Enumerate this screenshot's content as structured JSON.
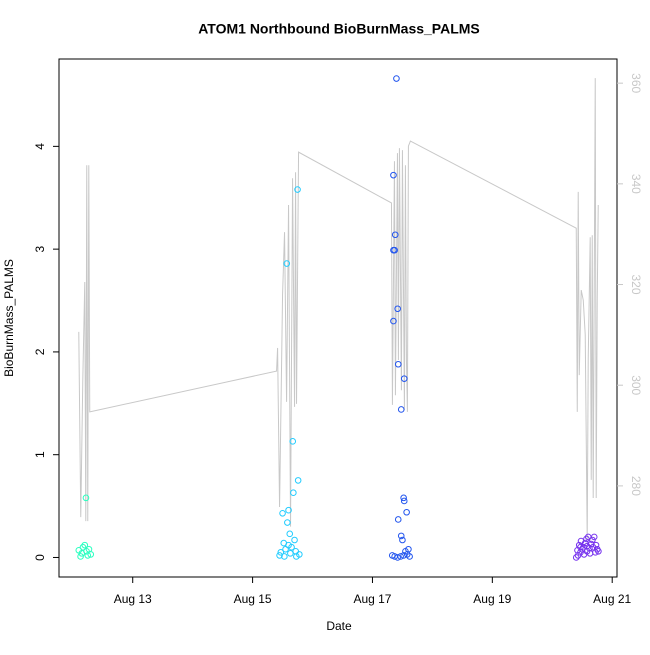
{
  "chart_data": {
    "type": "scatter",
    "title": "ATOM1 Northbound BioBurnMass_PALMS",
    "x_label": "Date",
    "y_label": "BioBurnMass_PALMS",
    "xlim": [
      11.77,
      21.08
    ],
    "xticks": [
      {
        "value": 13,
        "label": "Aug 13"
      },
      {
        "value": 15,
        "label": "Aug 15"
      },
      {
        "value": 17,
        "label": "Aug 17"
      },
      {
        "value": 19,
        "label": "Aug 19"
      },
      {
        "value": 21,
        "label": "Aug 21"
      }
    ],
    "ylim": [
      -0.19,
      4.85
    ],
    "yticks": [
      0,
      1,
      2,
      3,
      4
    ],
    "y2lim": [
      261.9,
      364.8
    ],
    "y2ticks": [
      280,
      300,
      320,
      340,
      360
    ],
    "y2_color": "#c8c8c8",
    "series": [
      {
        "color": "#2affc0",
        "mode": "points",
        "x": [
          12.1,
          12.13,
          12.15,
          12.17,
          12.2,
          12.22,
          12.23,
          12.25,
          12.27,
          12.3
        ],
        "values": [
          0.07,
          0.01,
          0.04,
          0.1,
          0.12,
          0.58,
          0.06,
          0.02,
          0.08,
          0.03
        ]
      },
      {
        "color": "#22ccff",
        "mode": "points",
        "x": [
          15.45,
          15.47,
          15.5,
          15.52,
          15.55,
          15.57,
          15.58,
          15.6,
          15.62,
          15.63,
          15.65,
          15.67,
          15.68,
          15.7,
          15.72,
          15.73,
          15.75,
          15.76,
          15.78,
          15.6,
          15.53
        ],
        "values": [
          0.02,
          0.05,
          0.43,
          0.14,
          0.08,
          2.86,
          0.34,
          0.46,
          0.23,
          0.04,
          0.1,
          1.13,
          0.63,
          0.17,
          0.06,
          0.01,
          3.58,
          0.75,
          0.03,
          0.12,
          0.01
        ]
      },
      {
        "color": "#2255ee",
        "mode": "points",
        "x": [
          17.35,
          17.4,
          17.38,
          17.35,
          17.35,
          17.42,
          17.37,
          17.43,
          17.53,
          17.48,
          17.52,
          17.53,
          17.57,
          17.43,
          17.48,
          17.33,
          17.37,
          17.42,
          17.47,
          17.52,
          17.55,
          17.58,
          17.6,
          17.62,
          17.5
        ],
        "values": [
          3.72,
          4.66,
          3.14,
          2.99,
          2.3,
          2.42,
          2.99,
          1.88,
          1.74,
          1.44,
          0.58,
          0.55,
          0.44,
          0.37,
          0.21,
          0.02,
          0.01,
          0.0,
          0.01,
          0.02,
          0.06,
          0.03,
          0.08,
          0.01,
          0.17
        ]
      },
      {
        "color": "#7733ee",
        "mode": "points",
        "x": [
          20.4,
          20.42,
          20.43,
          20.45,
          20.47,
          20.48,
          20.5,
          20.52,
          20.53,
          20.55,
          20.57,
          20.58,
          20.6,
          20.62,
          20.63,
          20.65,
          20.67,
          20.68,
          20.7,
          20.72,
          20.73,
          20.75,
          20.77,
          20.47,
          20.58
        ],
        "values": [
          0.0,
          0.07,
          0.02,
          0.12,
          0.05,
          0.16,
          0.08,
          0.1,
          0.03,
          0.14,
          0.18,
          0.06,
          0.2,
          0.09,
          0.04,
          0.13,
          0.17,
          0.1,
          0.2,
          0.05,
          0.12,
          0.08,
          0.06,
          0.1,
          0.11
        ]
      },
      {
        "color": "#c8c8c8",
        "mode": "line",
        "axis": "y2",
        "x": [
          12.1,
          12.133,
          12.167,
          12.2,
          12.217,
          12.233,
          12.25,
          12.267,
          12.283,
          15.4,
          15.417,
          15.45,
          15.5,
          15.533,
          15.567,
          15.6,
          15.633,
          15.667,
          15.7,
          15.717,
          15.733,
          15.767,
          17.317,
          17.333,
          17.367,
          17.383,
          17.417,
          17.433,
          17.45,
          17.483,
          17.5,
          17.533,
          17.55,
          17.567,
          17.583,
          17.6,
          17.633,
          20.4,
          20.417,
          20.433,
          20.45,
          20.483,
          20.517,
          20.55,
          20.583,
          20.6,
          20.633,
          20.65,
          20.667,
          20.683,
          20.717,
          20.733,
          20.75,
          20.767
        ],
        "values": [
          310.6,
          273.8,
          301,
          320.5,
          273,
          343.7,
          273,
          343.7,
          294.7,
          302.8,
          307.4,
          275.8,
          318,
          330.4,
          296.7,
          335.8,
          271.9,
          341.1,
          295.7,
          342.3,
          296.3,
          346.3,
          336.2,
          296.1,
          344.5,
          298,
          346.1,
          305,
          347.1,
          299,
          346.7,
          295.1,
          343.7,
          305,
          294.7,
          347.5,
          348.5,
          331.2,
          294.7,
          338.4,
          302,
          318.9,
          316.9,
          310,
          269.3,
          305.4,
          329.4,
          281.2,
          329.8,
          277.6,
          361,
          277.6,
          316.9,
          335.8
        ]
      }
    ]
  }
}
